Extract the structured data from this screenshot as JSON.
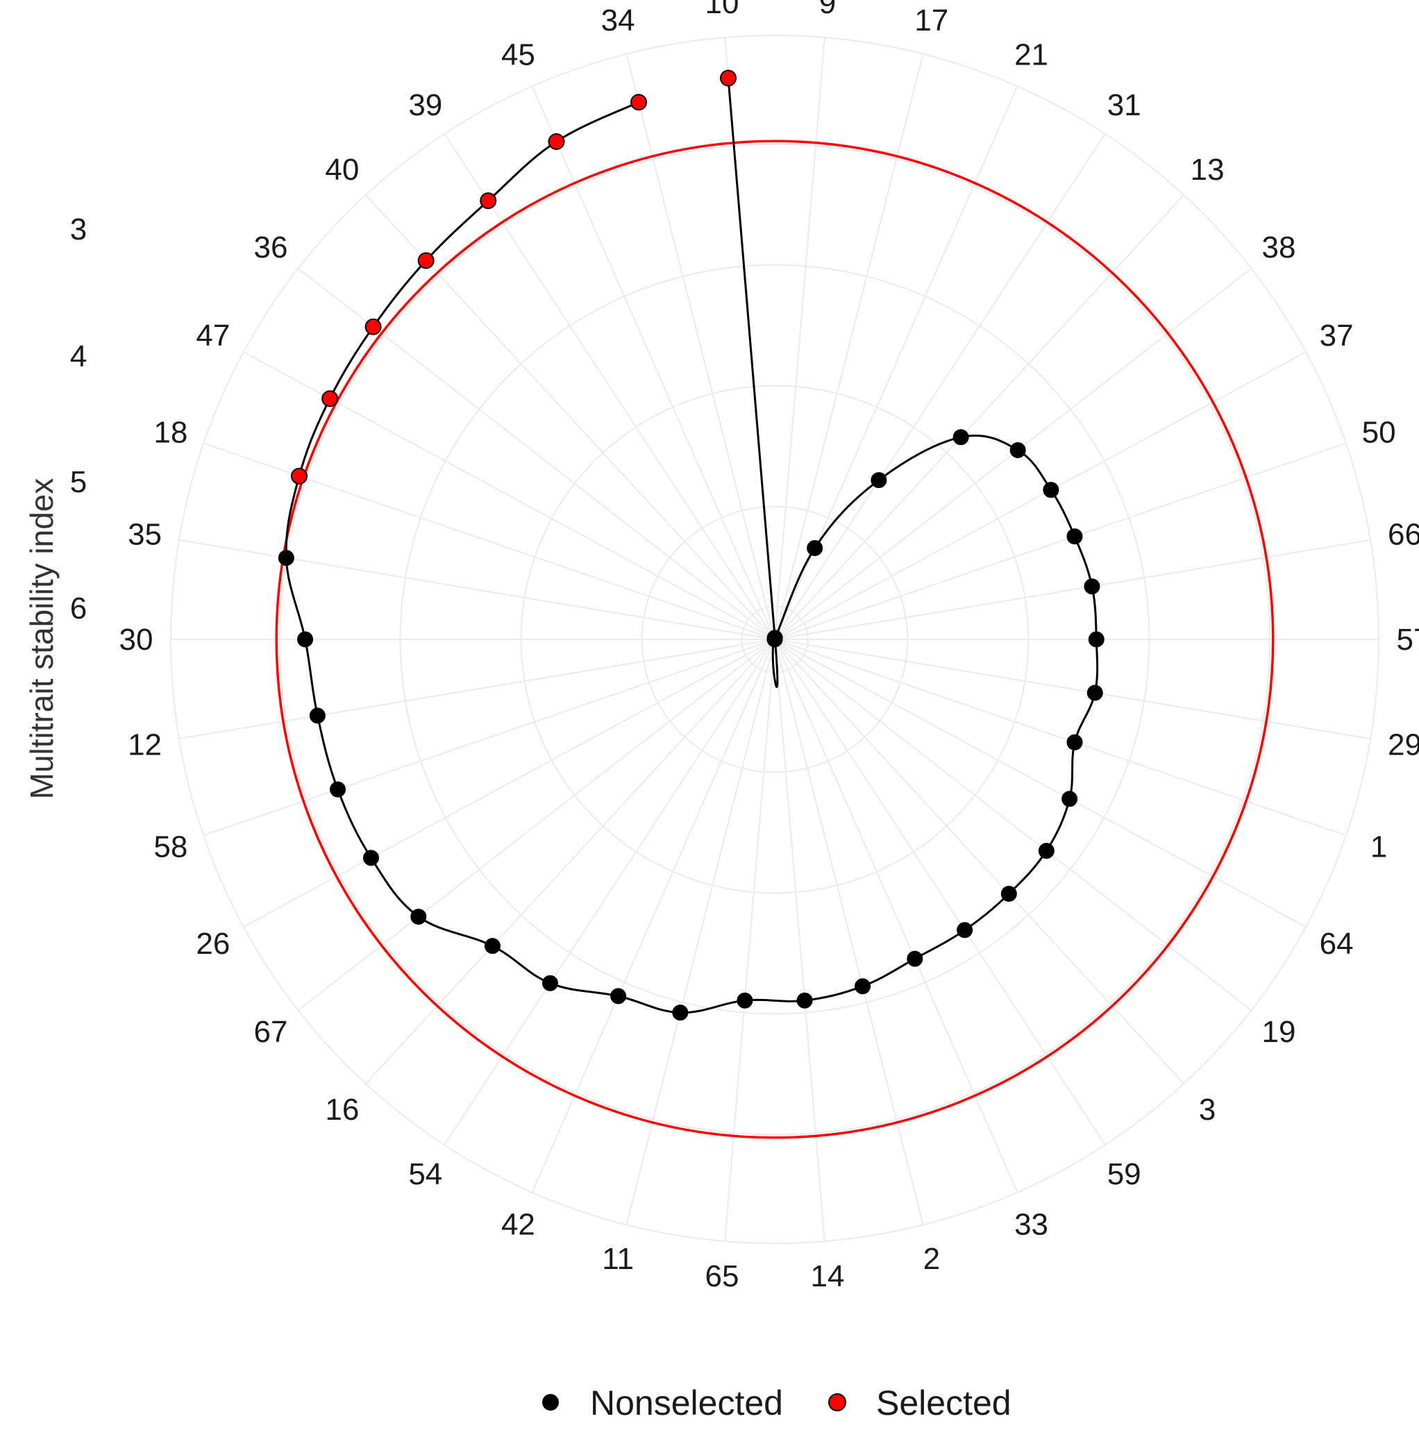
{
  "chart_data": {
    "type": "radar",
    "ylabel": "Multitrait stability index",
    "radial_ticks": [
      "3",
      "4",
      "5",
      "6"
    ],
    "r_axis": {
      "inner": 6.7,
      "outer": 2.7,
      "direction": "decreasing-outward"
    },
    "grid": true,
    "legend_position": "bottom",
    "cutoff": {
      "value": 3.4,
      "color": "#ff0000"
    },
    "colors": {
      "Nonselected": "#000000",
      "Selected": "#ff0000",
      "line": "#000000",
      "grid": "#ebebeb"
    },
    "legend": [
      {
        "name": "Nonselected",
        "color": "#000000"
      },
      {
        "name": "Selected",
        "color": "#ff0000"
      }
    ],
    "categories": [
      "10",
      "9",
      "17",
      "21",
      "31",
      "13",
      "38",
      "37",
      "50",
      "66",
      "57",
      "29",
      "1",
      "64",
      "19",
      "3",
      "59",
      "33",
      "2",
      "14",
      "65",
      "11",
      "42",
      "54",
      "16",
      "67",
      "26",
      "58",
      "12",
      "30",
      "35",
      "18",
      "47",
      "36",
      "40",
      "39",
      "45",
      "34"
    ],
    "points": [
      {
        "genotype": "10",
        "msi": 2.97,
        "status": "Selected"
      },
      {
        "genotype": "9",
        "msi": 6.69,
        "status": "Nonselected"
      },
      {
        "genotype": "17",
        "msi": 6.7,
        "status": "Nonselected"
      },
      {
        "genotype": "21",
        "msi": 6.04,
        "status": "Nonselected"
      },
      {
        "genotype": "31",
        "msi": 5.44,
        "status": "Nonselected"
      },
      {
        "genotype": "13",
        "msi": 4.88,
        "status": "Nonselected"
      },
      {
        "genotype": "38",
        "msi": 4.66,
        "status": "Nonselected"
      },
      {
        "genotype": "37",
        "msi": 4.62,
        "status": "Nonselected"
      },
      {
        "genotype": "50",
        "msi": 4.6,
        "status": "Nonselected"
      },
      {
        "genotype": "66",
        "msi": 4.57,
        "status": "Nonselected"
      },
      {
        "genotype": "57",
        "msi": 4.57,
        "status": "Nonselected"
      },
      {
        "genotype": "29",
        "msi": 4.55,
        "status": "Nonselected"
      },
      {
        "genotype": "1",
        "msi": 4.6,
        "status": "Nonselected"
      },
      {
        "genotype": "64",
        "msi": 4.48,
        "status": "Nonselected"
      },
      {
        "genotype": "19",
        "msi": 4.42,
        "status": "Nonselected"
      },
      {
        "genotype": "3",
        "msi": 4.41,
        "status": "Nonselected"
      },
      {
        "genotype": "59",
        "msi": 4.4,
        "status": "Nonselected"
      },
      {
        "genotype": "33",
        "msi": 4.39,
        "status": "Nonselected"
      },
      {
        "genotype": "2",
        "msi": 4.33,
        "status": "Nonselected"
      },
      {
        "genotype": "14",
        "msi": 4.3,
        "status": "Nonselected"
      },
      {
        "genotype": "65",
        "msi": 4.3,
        "status": "Nonselected"
      },
      {
        "genotype": "11",
        "msi": 4.15,
        "status": "Nonselected"
      },
      {
        "genotype": "42",
        "msi": 4.12,
        "status": "Nonselected"
      },
      {
        "genotype": "54",
        "msi": 3.98,
        "status": "Nonselected"
      },
      {
        "genotype": "16",
        "msi": 3.94,
        "status": "Nonselected"
      },
      {
        "genotype": "67",
        "msi": 3.71,
        "status": "Nonselected"
      },
      {
        "genotype": "26",
        "msi": 3.66,
        "status": "Nonselected"
      },
      {
        "genotype": "58",
        "msi": 3.64,
        "status": "Nonselected"
      },
      {
        "genotype": "12",
        "msi": 3.63,
        "status": "Nonselected"
      },
      {
        "genotype": "30",
        "msi": 3.59,
        "status": "Nonselected"
      },
      {
        "genotype": "35",
        "msi": 3.42,
        "status": "Nonselected"
      },
      {
        "genotype": "18",
        "msi": 3.37,
        "status": "Selected"
      },
      {
        "genotype": "47",
        "msi": 3.35,
        "status": "Selected"
      },
      {
        "genotype": "36",
        "msi": 3.33,
        "status": "Selected"
      },
      {
        "genotype": "40",
        "msi": 3.29,
        "status": "Selected"
      },
      {
        "genotype": "39",
        "msi": 3.23,
        "status": "Selected"
      },
      {
        "genotype": "45",
        "msi": 3.1,
        "status": "Selected"
      },
      {
        "genotype": "34",
        "msi": 3.03,
        "status": "Selected"
      }
    ]
  }
}
